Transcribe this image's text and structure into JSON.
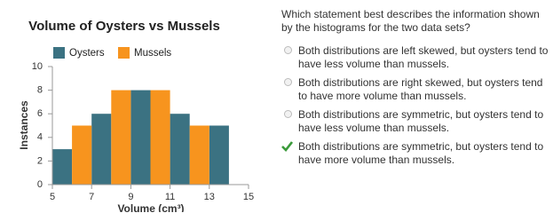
{
  "chart_data": {
    "type": "histogram",
    "title": "Volume of Oysters vs Mussels",
    "x_label": "Volume (cm³)",
    "y_label": "Instances",
    "series": [
      {
        "name": "Oysters",
        "color": "#3b7282",
        "bins": [
          5,
          6,
          7,
          8,
          9,
          10,
          11,
          12,
          13,
          14
        ],
        "values": [
          3,
          0,
          6,
          0,
          8,
          0,
          6,
          0,
          5
        ]
      },
      {
        "name": "Mussels",
        "color": "#f7941e",
        "bins": [
          6,
          7,
          8,
          9,
          10,
          11,
          12,
          13
        ],
        "values": [
          5,
          0,
          8,
          0,
          8,
          0,
          5
        ]
      }
    ],
    "xlim": [
      5,
      15
    ],
    "xticks": [
      5,
      7,
      9,
      11,
      13,
      15
    ],
    "ylim": [
      0,
      10
    ],
    "yticks": [
      0,
      2,
      4,
      6,
      8,
      10
    ],
    "grid": false
  },
  "question": "Which statement best describes the information shown by the histograms for the two data sets?",
  "options": [
    "Both distributions are left skewed, but oysters tend to have less volume than mussels.",
    "Both distributions are right skewed, but oysters tend to have more volume than mussels.",
    "Both distributions are symmetric, but oysters tend to have less volume than mussels.",
    "Both distributions are symmetric, but oysters tend to have more volume than mussels."
  ],
  "selected": 3
}
